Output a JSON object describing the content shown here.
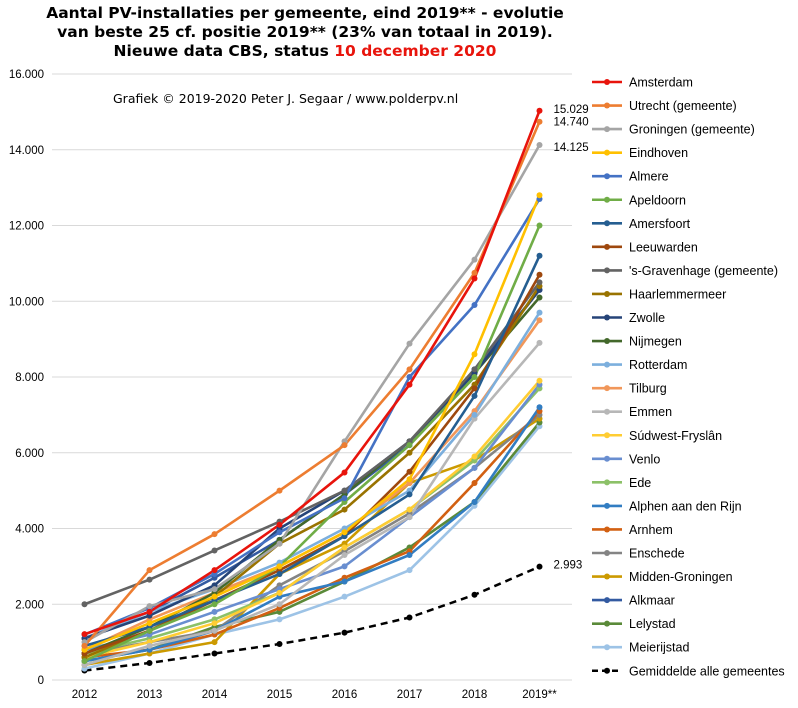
{
  "title": {
    "line1": "Aantal PV-installaties  per gemeente, eind 2019** - evolutie",
    "line2": "van beste 25 cf. positie 2019** (23% van totaal in 2019).",
    "line3_prefix": "Nieuwe data CBS, status ",
    "line3_date": "10 december 2020"
  },
  "credit": "Grafiek  © 2019-2020  Peter J. Segaar / www.polderpv.nl",
  "chart_data": {
    "type": "line",
    "categories": [
      "2012",
      "2013",
      "2014",
      "2015",
      "2016",
      "2017",
      "2018",
      "2019**"
    ],
    "y_ticks": [
      "0",
      "2.000",
      "4.000",
      "6.000",
      "8.000",
      "10.000",
      "12.000",
      "14.000",
      "16.000"
    ],
    "ylim": [
      0,
      16000
    ],
    "grid": "horizontal",
    "legend_position": "right",
    "end_labels": [
      "15.029",
      "14.740",
      "14.125",
      "2.993"
    ],
    "series": [
      {
        "name": "Amsterdam",
        "color": "#e8140c",
        "values": [
          1210,
          1800,
          2900,
          4100,
          5480,
          7800,
          10600,
          15029
        ]
      },
      {
        "name": "Utrecht (gemeente)",
        "color": "#ed7d31",
        "values": [
          900,
          2900,
          3850,
          5000,
          6200,
          8200,
          10750,
          14740
        ]
      },
      {
        "name": "Groningen (gemeente)",
        "color": "#a5a5a5",
        "values": [
          1000,
          1950,
          2400,
          3600,
          6300,
          8880,
          11100,
          14125
        ]
      },
      {
        "name": "Eindhoven",
        "color": "#ffc000",
        "values": [
          800,
          1500,
          2200,
          3000,
          3900,
          5300,
          8600,
          12800
        ]
      },
      {
        "name": "Almere",
        "color": "#4472c4",
        "values": [
          1200,
          1900,
          2800,
          3900,
          4800,
          8000,
          9900,
          12700
        ]
      },
      {
        "name": "Apeldoorn",
        "color": "#70ad47",
        "values": [
          500,
          1300,
          2000,
          3000,
          4700,
          6200,
          8000,
          12000
        ]
      },
      {
        "name": "Amersfoort",
        "color": "#255e91",
        "values": [
          900,
          1400,
          2100,
          2800,
          3800,
          4900,
          7500,
          11200
        ]
      },
      {
        "name": "Leeuwarden",
        "color": "#9e480e",
        "values": [
          700,
          1300,
          2100,
          2900,
          3800,
          5500,
          7700,
          10700
        ]
      },
      {
        "name": "'s-Gravenhage (gemeente)",
        "color": "#636363",
        "values": [
          2000,
          2650,
          3420,
          4180,
          5000,
          6300,
          8200,
          10500
        ]
      },
      {
        "name": "Haarlemmermeer",
        "color": "#997300",
        "values": [
          600,
          1300,
          2200,
          3600,
          4500,
          6000,
          7800,
          10400
        ]
      },
      {
        "name": "Zwolle",
        "color": "#264478",
        "values": [
          1100,
          1700,
          2500,
          4000,
          5000,
          6300,
          8100,
          10300
        ]
      },
      {
        "name": "Nijmegen",
        "color": "#43682b",
        "values": [
          700,
          1400,
          2300,
          3700,
          4900,
          6300,
          8100,
          10100
        ]
      },
      {
        "name": "Rotterdam",
        "color": "#7cafdd",
        "values": [
          1100,
          1800,
          2400,
          3100,
          4000,
          5000,
          7000,
          9700
        ]
      },
      {
        "name": "Tilburg",
        "color": "#f1975a",
        "values": [
          800,
          1600,
          2300,
          3000,
          3900,
          5200,
          7100,
          9500
        ]
      },
      {
        "name": "Emmen",
        "color": "#b7b7b7",
        "values": [
          400,
          900,
          1300,
          2000,
          3300,
          4300,
          6900,
          8900
        ]
      },
      {
        "name": "Súdwest-Fryslân",
        "color": "#ffcd33",
        "values": [
          600,
          1000,
          1500,
          2300,
          3500,
          4500,
          5900,
          7900
        ]
      },
      {
        "name": "Venlo",
        "color": "#698ed0",
        "values": [
          800,
          1200,
          1800,
          2400,
          3000,
          4300,
          5600,
          7800
        ]
      },
      {
        "name": "Ede",
        "color": "#8cc168",
        "values": [
          700,
          1100,
          1600,
          2300,
          3500,
          4500,
          5800,
          7700
        ]
      },
      {
        "name": "Alphen aan den Rijn",
        "color": "#327dc2",
        "values": [
          500,
          800,
          1300,
          2200,
          2600,
          3300,
          4700,
          7200
        ]
      },
      {
        "name": "Arnhem",
        "color": "#d26012",
        "values": [
          600,
          800,
          1200,
          1900,
          2700,
          3400,
          5200,
          7100
        ]
      },
      {
        "name": "Enschede",
        "color": "#848484",
        "values": [
          700,
          1000,
          1300,
          2500,
          3400,
          4400,
          5600,
          7000
        ]
      },
      {
        "name": "Midden-Groningen",
        "color": "#cc9a00",
        "values": [
          400,
          700,
          1000,
          2800,
          3600,
          5200,
          5800,
          6900
        ]
      },
      {
        "name": "Alkmaar",
        "color": "#335aa1",
        "values": [
          1100,
          1800,
          2700,
          3700,
          4900,
          6200,
          8200,
          10300
        ]
      },
      {
        "name": "Lelystad",
        "color": "#5a8a39",
        "values": [
          500,
          800,
          1400,
          1800,
          2600,
          3500,
          4700,
          6800
        ]
      },
      {
        "name": "Meierijstad",
        "color": "#9dc3e6",
        "values": [
          300,
          700,
          1200,
          1600,
          2200,
          2900,
          4600,
          6700
        ]
      },
      {
        "name": "Gemiddelde alle gemeentes",
        "color": "#000000",
        "dashed": true,
        "values": [
          250,
          450,
          700,
          950,
          1250,
          1650,
          2250,
          2993
        ]
      }
    ]
  }
}
